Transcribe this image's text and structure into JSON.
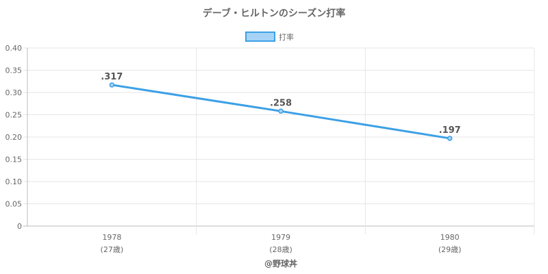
{
  "chart_data": {
    "type": "line",
    "title": "デーブ・ヒルトンのシーズン打率",
    "legend": {
      "position": "top",
      "label": "打率"
    },
    "categories": [
      "1978",
      "1979",
      "1980"
    ],
    "category_sublabels": [
      "(27歳)",
      "(28歳)",
      "(29歳)"
    ],
    "series": [
      {
        "name": "打率",
        "values": [
          0.317,
          0.258,
          0.197
        ],
        "data_labels": [
          ".317",
          ".258",
          ".197"
        ],
        "color": "#3ca0e6"
      }
    ],
    "ylim": [
      0,
      0.4
    ],
    "y_ticks": [
      "0",
      "0.05",
      "0.10",
      "0.15",
      "0.20",
      "0.25",
      "0.30",
      "0.35",
      "0.40"
    ],
    "grid": true,
    "credit": "@野球丼"
  }
}
